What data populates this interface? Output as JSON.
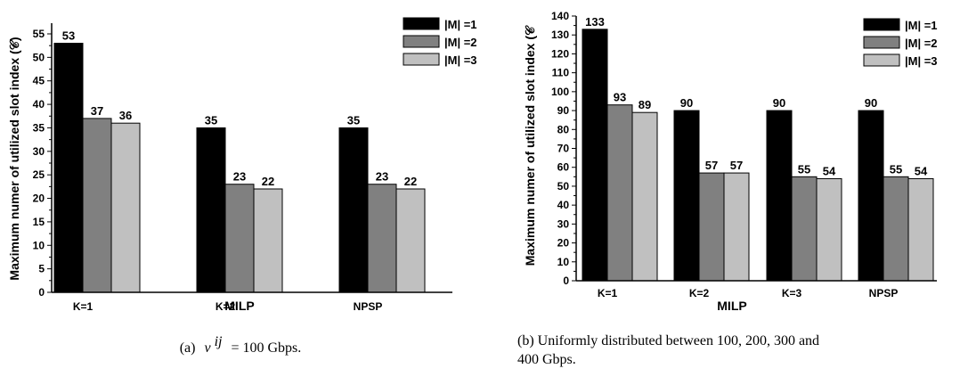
{
  "colors": {
    "s1": "#000000",
    "s2": "#808080",
    "s3": "#c0c0c0"
  },
  "chart_data": [
    {
      "type": "bar",
      "categories": [
        "K=1",
        "K=2",
        "NPSP"
      ],
      "series": [
        {
          "name": "|M| =1",
          "values": [
            53,
            35,
            35
          ]
        },
        {
          "name": "|M| =2",
          "values": [
            37,
            23,
            23
          ]
        },
        {
          "name": "|M| =3",
          "values": [
            36,
            22,
            22
          ]
        }
      ],
      "xlabel": "MILP",
      "ylabel": "Maximum numer of utilized slot index (𝒞)",
      "ylim": [
        0,
        55
      ],
      "yticks": [
        0,
        5,
        10,
        15,
        20,
        25,
        30,
        35,
        40,
        45,
        50,
        55
      ],
      "grid": false,
      "legend": "top-right",
      "caption": {
        "label": "(a)",
        "math": "v",
        "sup": "ij",
        "rest": "= 100 Gbps."
      }
    },
    {
      "type": "bar",
      "categories": [
        "K=1",
        "K=2",
        "K=3",
        "NPSP"
      ],
      "series": [
        {
          "name": "|M| =1",
          "values": [
            133,
            90,
            90,
            90
          ]
        },
        {
          "name": "|M| =2",
          "values": [
            93,
            57,
            55,
            55
          ]
        },
        {
          "name": "|M| =3",
          "values": [
            89,
            57,
            54,
            54
          ]
        }
      ],
      "xlabel": "MILP",
      "ylabel": "Maximum numer of utilized slot index (𝒞",
      "ylim": [
        0,
        140
      ],
      "yticks": [
        0,
        10,
        20,
        30,
        40,
        50,
        60,
        70,
        80,
        90,
        100,
        110,
        120,
        130,
        140
      ],
      "grid": false,
      "legend": "top-right",
      "caption": {
        "line1": "(b) Uniformly distributed between 100, 200, 300 and",
        "line2": "400 Gbps."
      }
    }
  ]
}
